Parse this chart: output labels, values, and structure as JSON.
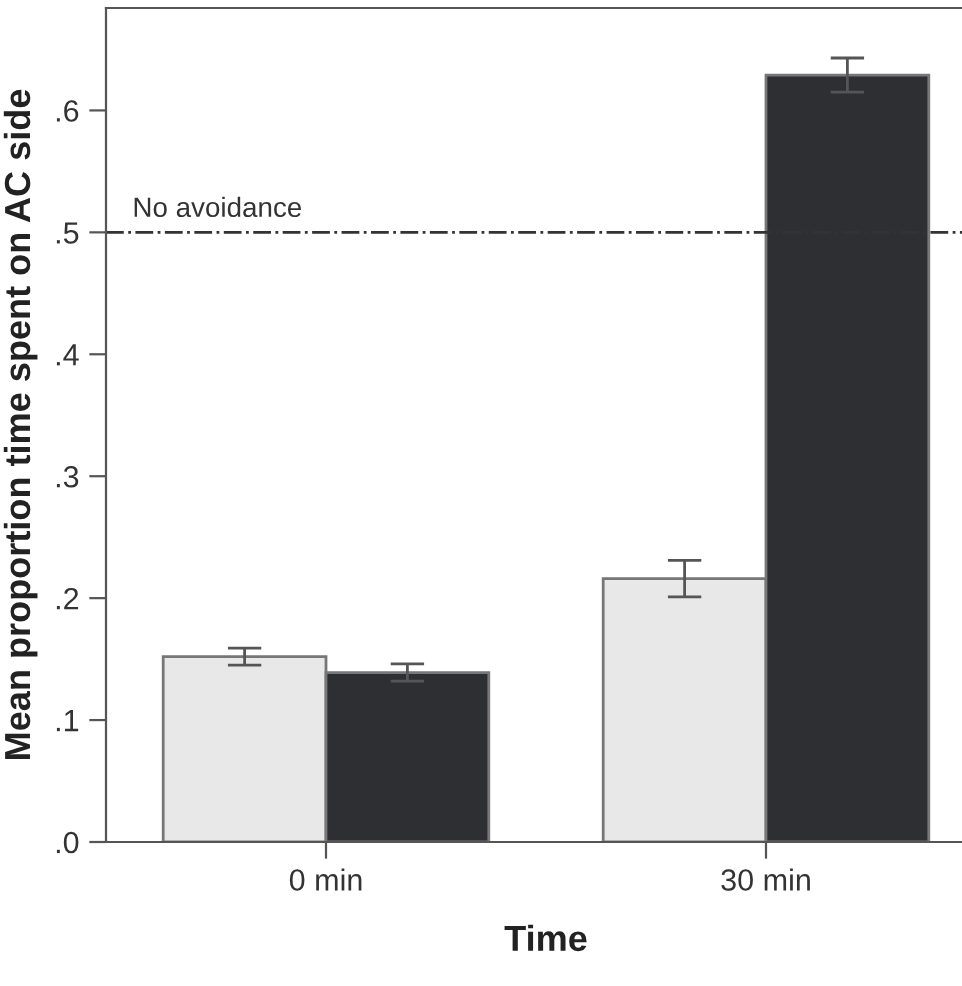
{
  "chart_data": {
    "type": "bar",
    "xlabel": "Time",
    "ylabel": "Mean proportion time spent on AC side",
    "categories": [
      "0 min",
      "30 min"
    ],
    "series": [
      {
        "color": "#e8e8e8",
        "values": [
          0.152,
          0.216
        ],
        "errors": [
          0.007,
          0.015
        ]
      },
      {
        "color": "#2e2f33",
        "values": [
          0.139,
          0.629
        ],
        "errors": [
          0.007,
          0.014
        ]
      }
    ],
    "ylim": [
      0,
      0.684
    ],
    "yticks": [
      {
        "value": 0,
        "label": ".0"
      },
      {
        "value": 0.1,
        "label": ".1"
      },
      {
        "value": 0.2,
        "label": ".2"
      },
      {
        "value": 0.3,
        "label": ".3"
      },
      {
        "value": 0.4,
        "label": ".4"
      },
      {
        "value": 0.5,
        "label": ".5"
      },
      {
        "value": 0.6,
        "label": ".6"
      }
    ],
    "ref_lines": [
      {
        "axis": "y",
        "value": 0.5,
        "label": "No avoidance",
        "line_style": "dashdot"
      }
    ],
    "grid": false,
    "legend": false
  }
}
